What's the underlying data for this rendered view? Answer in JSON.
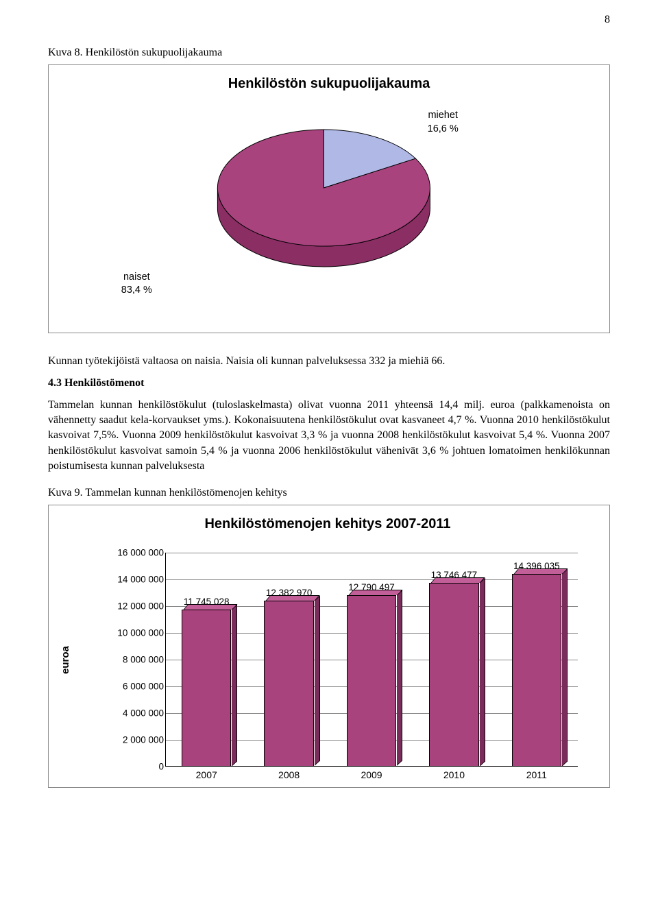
{
  "page_number": "8",
  "figure1": {
    "caption": "Kuva 8. Henkilöstön sukupuolijakauma",
    "title": "Henkilöstön sukupuolijakauma",
    "type": "pie",
    "slices": [
      {
        "key": "miehet",
        "label_line1": "miehet",
        "label_line2": "16,6 %",
        "pct": 16.6,
        "color_top": "#b0b8e6",
        "color_front": "#9aa2db"
      },
      {
        "key": "naiset",
        "label_line1": "naiset",
        "label_line2": "83,4 %",
        "pct": 83.4,
        "color_top": "#a9437e",
        "color_front": "#8a2e64"
      }
    ],
    "outline": "#000000"
  },
  "body_after_fig1": "Kunnan työtekijöistä valtaosa on naisia. Naisia oli kunnan palveluksessa 332 ja miehiä 66.",
  "section_heading": "4.3  Henkilöstömenot",
  "paragraph": "Tammelan kunnan henkilöstökulut (tuloslaskelmasta) olivat vuonna 2011 yhteensä 14,4 milj. euroa (palkkamenoista on vähennetty saadut kela-korvaukset yms.). Kokonaisuutena henkilöstökulut ovat kasvaneet 4,7 %. Vuonna 2010 henkilöstökulut kasvoivat 7,5%. Vuonna 2009 henkilöstökulut kasvoivat 3,3 % ja vuonna 2008 henkilöstökulut kasvoivat 5,4 %. Vuonna 2007 henkilöstökulut kasvoivat samoin 5,4 % ja vuonna 2006 henkilöstökulut vähenivät 3,6 % johtuen lomatoimen henkilökunnan poistumisesta kunnan palveluksesta",
  "figure2": {
    "caption": "Kuva 9. Tammelan kunnan henkilöstömenojen kehitys",
    "title": "Henkilöstömenojen kehitys  2007-2011",
    "type": "bar",
    "y_label": "euroa",
    "y_max": 16000000,
    "y_step": 2000000,
    "y_ticks": [
      "16 000 000",
      "14 000 000",
      "12 000 000",
      "10 000 000",
      "8 000 000",
      "6 000 000",
      "4 000 000",
      "2 000 000",
      "0"
    ],
    "bars": [
      {
        "year": "2007",
        "value": 11745028,
        "label": "11 745 028"
      },
      {
        "year": "2008",
        "value": 12382970,
        "label": "12 382 970"
      },
      {
        "year": "2009",
        "value": 12790497,
        "label": "12 790 497"
      },
      {
        "year": "2010",
        "value": 13746477,
        "label": "13 746 477"
      },
      {
        "year": "2011",
        "value": 14396035,
        "label": "14 396 035"
      }
    ],
    "bar_color_front": "#a9437e",
    "bar_color_top": "#c25f98",
    "bar_color_side": "#7a2c5a",
    "grid_color": "#888888"
  }
}
